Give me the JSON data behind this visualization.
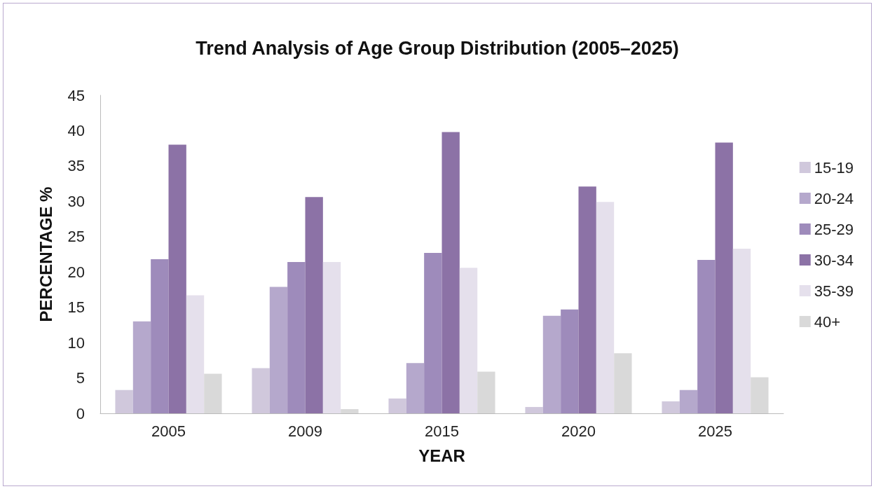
{
  "chart_data": {
    "type": "bar",
    "title": "Trend Analysis of Age Group Distribution (2005–2025)",
    "xlabel": "YEAR",
    "ylabel": "PERCENTAGE %",
    "categories": [
      "2005",
      "2009",
      "2015",
      "2020",
      "2025"
    ],
    "series": [
      {
        "name": "15-19",
        "color": "#d0c8dc",
        "values": [
          3.3,
          6.4,
          2.1,
          0.9,
          1.7
        ]
      },
      {
        "name": "20-24",
        "color": "#b5a8cc",
        "values": [
          13.0,
          17.9,
          7.1,
          13.8,
          3.3
        ]
      },
      {
        "name": "25-29",
        "color": "#9e8bbb",
        "values": [
          21.8,
          21.4,
          22.7,
          14.7,
          21.7
        ]
      },
      {
        "name": "30-34",
        "color": "#8c72a6",
        "values": [
          38.0,
          30.6,
          39.8,
          32.1,
          38.3
        ]
      },
      {
        "name": "35-39",
        "color": "#e5e0ec",
        "values": [
          16.7,
          21.4,
          20.6,
          29.9,
          23.3
        ]
      },
      {
        "name": "40+",
        "color": "#d9d9d9",
        "values": [
          5.6,
          0.6,
          5.9,
          8.5,
          5.1
        ]
      }
    ],
    "ylim": [
      0,
      45
    ],
    "yticks": [
      0,
      5,
      10,
      15,
      20,
      25,
      30,
      35,
      40,
      45
    ],
    "grid": false,
    "legend": "right"
  }
}
